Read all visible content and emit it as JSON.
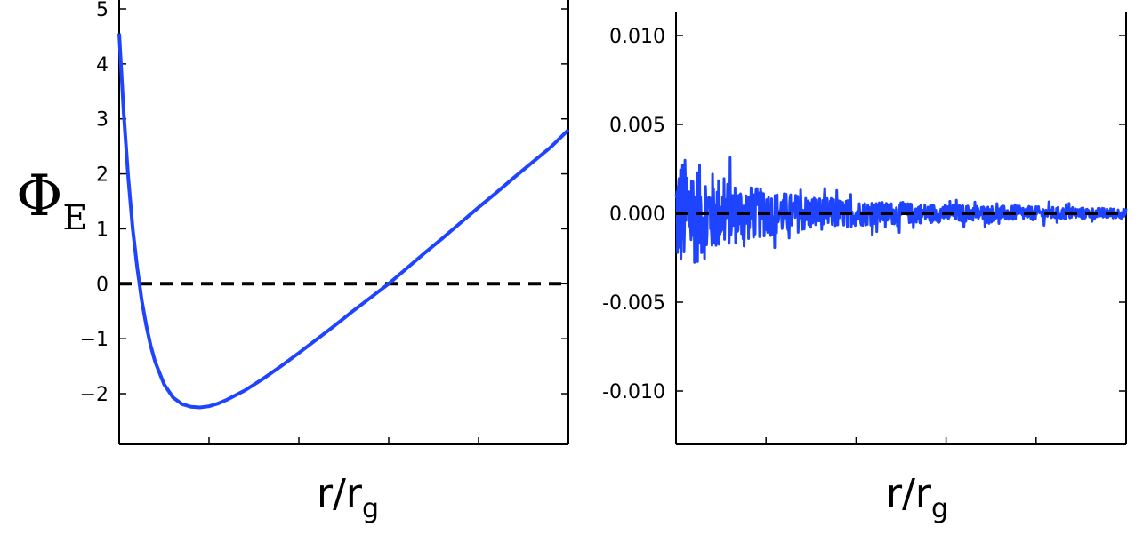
{
  "colors": {
    "series": "#1f44ff",
    "reference": "#000000"
  },
  "chart_data": [
    {
      "type": "line",
      "xlabel": "r/r",
      "xlabel_sub": "g",
      "ylabel": "Φ",
      "ylabel_sub": "E",
      "ylim": [
        -2.9,
        5.0
      ],
      "xlim": [
        0,
        5
      ],
      "yticks": [
        5,
        4,
        3,
        2,
        1,
        0,
        -1,
        -2
      ],
      "ytick_labels": [
        "5",
        "4",
        "3",
        "2",
        "1",
        "0",
        "−1",
        "−2"
      ],
      "xticks": [
        0,
        1,
        2,
        3,
        4,
        5
      ],
      "reference_line": {
        "y": 0,
        "style": "dashed"
      },
      "series": [
        {
          "x": [
            0.0,
            0.05,
            0.1,
            0.15,
            0.2,
            0.25,
            0.3,
            0.35,
            0.4,
            0.5,
            0.6,
            0.7,
            0.8,
            0.9,
            1.0,
            1.1,
            1.2,
            1.4,
            1.6,
            1.8,
            2.0,
            2.2,
            2.4,
            2.6,
            2.8,
            3.0,
            3.2,
            3.4,
            3.6,
            3.8,
            4.0,
            4.2,
            4.4,
            4.6,
            4.8,
            5.0
          ],
          "values": [
            4.55,
            3.1,
            1.95,
            1.0,
            0.3,
            -0.3,
            -0.75,
            -1.12,
            -1.42,
            -1.83,
            -2.07,
            -2.19,
            -2.24,
            -2.25,
            -2.23,
            -2.18,
            -2.11,
            -1.94,
            -1.73,
            -1.5,
            -1.26,
            -1.01,
            -0.76,
            -0.5,
            -0.25,
            0.0,
            0.28,
            0.56,
            0.83,
            1.11,
            1.39,
            1.66,
            1.94,
            2.21,
            2.48,
            2.8
          ]
        }
      ]
    },
    {
      "type": "line",
      "xlabel": "r/r",
      "xlabel_sub": "g",
      "ylim": [
        -0.013,
        0.0113
      ],
      "xlim": [
        0,
        5
      ],
      "yticks": [
        0.01,
        0.005,
        0.0,
        -0.005,
        -0.01
      ],
      "ytick_labels": [
        "0.010",
        "0.005",
        "0.000",
        "-0.005",
        "-0.010"
      ],
      "xticks": [
        0,
        1,
        2,
        3,
        4,
        5
      ],
      "reference_line": {
        "y": 0,
        "style": "dashed"
      },
      "series": [
        {
          "noise": true,
          "x_range": [
            0,
            5
          ],
          "n_points": 900,
          "envelope": [
            [
              0,
              0.0062
            ],
            [
              0.3,
              0.0048
            ],
            [
              0.6,
              0.0033
            ],
            [
              1.0,
              0.0024
            ],
            [
              1.5,
              0.0018
            ],
            [
              2.0,
              0.0013
            ],
            [
              3.0,
              0.0009
            ],
            [
              4.0,
              0.0007
            ],
            [
              5.0,
              0.0005
            ]
          ]
        }
      ]
    }
  ]
}
